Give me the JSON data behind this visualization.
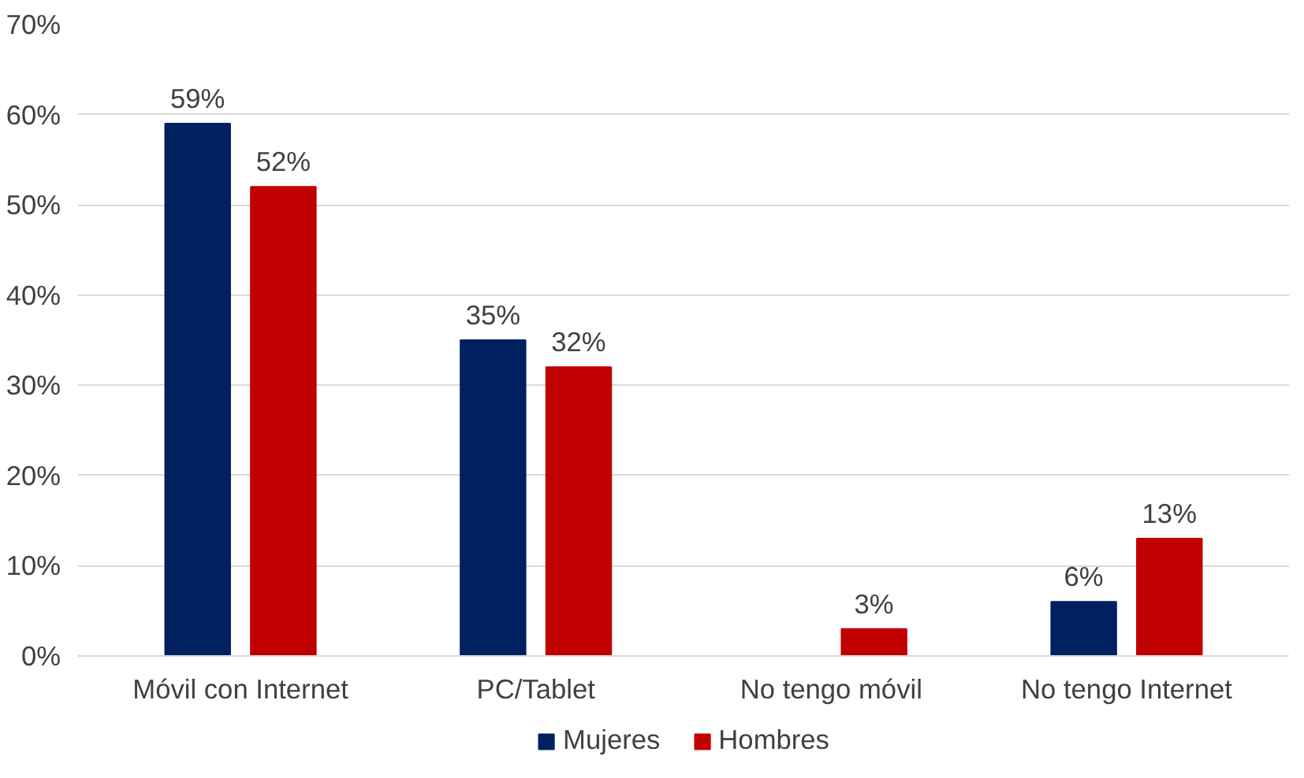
{
  "chart_data": {
    "type": "bar",
    "categories": [
      "Móvil con Internet",
      "PC/Tablet",
      "No tengo móvil",
      "No tengo Internet"
    ],
    "series": [
      {
        "name": "Mujeres",
        "color": "#002060",
        "values": [
          59,
          35,
          null,
          6
        ],
        "value_labels": [
          "59%",
          "35%",
          null,
          "6%"
        ]
      },
      {
        "name": "Hombres",
        "color": "#c00000",
        "values": [
          52,
          32,
          3,
          13
        ],
        "value_labels": [
          "52%",
          "32%",
          "3%",
          "13%"
        ]
      }
    ],
    "ylim": [
      0,
      70
    ],
    "yticks": [
      {
        "value": 0,
        "label": "0%"
      },
      {
        "value": 10,
        "label": "10%"
      },
      {
        "value": 20,
        "label": "20%"
      },
      {
        "value": 30,
        "label": "30%"
      },
      {
        "value": 40,
        "label": "40%"
      },
      {
        "value": 50,
        "label": "50%"
      },
      {
        "value": 60,
        "label": "60%"
      },
      {
        "value": 70,
        "label": "70%"
      }
    ],
    "grid": "y",
    "legend": "bottom"
  }
}
